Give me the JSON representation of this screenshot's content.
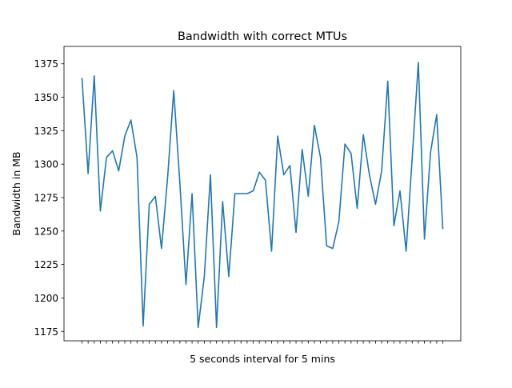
{
  "chart_data": {
    "type": "line",
    "title": "Bandwidth with correct MTUs",
    "xlabel": "5 seconds interval for 5 mins",
    "ylabel": "Bandwidth in MB",
    "ylim": [
      1168,
      1388
    ],
    "yticks": [
      1175,
      1200,
      1225,
      1250,
      1275,
      1300,
      1325,
      1350,
      1375
    ],
    "xticks_labeled": false,
    "grid": false,
    "series": [
      {
        "color": "#1f77b4",
        "values": [
          1364,
          1293,
          1366,
          1265,
          1305,
          1310,
          1295,
          1321,
          1333,
          1305,
          1179,
          1270,
          1276,
          1237,
          1290,
          1355,
          1286,
          1210,
          1278,
          1178,
          1216,
          1292,
          1178,
          1272,
          1216,
          1278,
          1278,
          1278,
          1280,
          1294,
          1288,
          1235,
          1321,
          1292,
          1299,
          1249,
          1311,
          1276,
          1329,
          1305,
          1239,
          1237,
          1257,
          1315,
          1308,
          1267,
          1322,
          1292,
          1270,
          1295,
          1362,
          1254,
          1280,
          1235,
          1305,
          1376,
          1244,
          1309,
          1337,
          1252
        ]
      }
    ]
  }
}
